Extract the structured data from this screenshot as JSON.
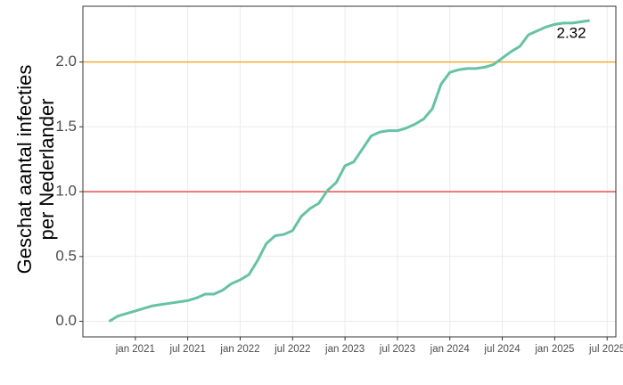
{
  "chart_data": {
    "type": "line",
    "ylabel": [
      "Geschat aantal infecties",
      "per Nederlander"
    ],
    "x": [
      "2020-10",
      "2020-11",
      "2020-12",
      "2021-01",
      "2021-02",
      "2021-03",
      "2021-04",
      "2021-05",
      "2021-06",
      "2021-07",
      "2021-08",
      "2021-09",
      "2021-10",
      "2021-11",
      "2021-12",
      "2022-01",
      "2022-02",
      "2022-03",
      "2022-04",
      "2022-05",
      "2022-06",
      "2022-07",
      "2022-08",
      "2022-09",
      "2022-10",
      "2022-11",
      "2022-12",
      "2023-01",
      "2023-02",
      "2023-03",
      "2023-04",
      "2023-05",
      "2023-06",
      "2023-07",
      "2023-08",
      "2023-09",
      "2023-10",
      "2023-11",
      "2023-12",
      "2024-01",
      "2024-02",
      "2024-03",
      "2024-04",
      "2024-05",
      "2024-06",
      "2024-07",
      "2024-08",
      "2024-09",
      "2024-10",
      "2024-11",
      "2024-12",
      "2025-01",
      "2025-02",
      "2025-03",
      "2025-04",
      "2025-05"
    ],
    "series": [
      {
        "color": "#66c2a5",
        "values": [
          0,
          0.04,
          0.06,
          0.08,
          0.1,
          0.12,
          0.13,
          0.14,
          0.15,
          0.16,
          0.18,
          0.21,
          0.21,
          0.24,
          0.29,
          0.32,
          0.36,
          0.47,
          0.6,
          0.66,
          0.67,
          0.7,
          0.81,
          0.87,
          0.91,
          1.01,
          1.07,
          1.2,
          1.23,
          1.33,
          1.43,
          1.46,
          1.47,
          1.47,
          1.49,
          1.52,
          1.56,
          1.64,
          1.83,
          1.92,
          1.94,
          1.95,
          1.95,
          1.96,
          1.98,
          2.03,
          2.08,
          2.12,
          2.21,
          2.24,
          2.27,
          2.29,
          2.3,
          2.3,
          2.31,
          2.32
        ]
      }
    ],
    "label_last": true,
    "hlines": [
      {
        "value": 2,
        "color": "#f5a31a"
      },
      {
        "value": 1,
        "color": "#e2413b"
      }
    ],
    "xlim": [
      "2020-07",
      "2025-08"
    ],
    "xticks": [
      {
        "value": "2021-01",
        "label": "jan 2021"
      },
      {
        "value": "2021-07",
        "label": "jul 2021"
      },
      {
        "value": "2022-01",
        "label": "jan 2022"
      },
      {
        "value": "2022-07",
        "label": "jul 2022"
      },
      {
        "value": "2023-01",
        "label": "jan 2023"
      },
      {
        "value": "2023-07",
        "label": "jul 2023"
      },
      {
        "value": "2024-01",
        "label": "jan 2024"
      },
      {
        "value": "2024-07",
        "label": "jul 2024"
      },
      {
        "value": "2025-01",
        "label": "jan 2025"
      },
      {
        "value": "2025-07",
        "label": "jul 2025"
      }
    ],
    "ylim": [
      -0.12,
      2.43
    ],
    "yticks": [
      {
        "value": 0,
        "label": "0.0"
      },
      0.5,
      {
        "value": 1,
        "label": "1.0"
      },
      1.5,
      {
        "value": 2,
        "label": "2.0"
      }
    ],
    "grid": true
  }
}
